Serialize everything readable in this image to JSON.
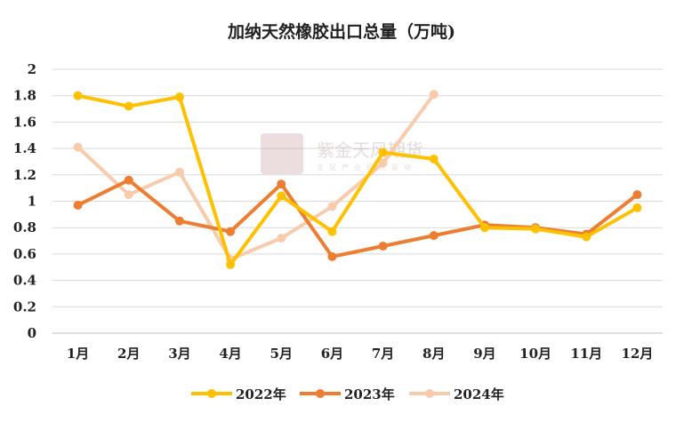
{
  "chart_data": {
    "type": "line",
    "title": "加纳天然橡胶出口总量（万吨)",
    "xlabel": "",
    "ylabel": "",
    "categories": [
      "1月",
      "2月",
      "3月",
      "4月",
      "5月",
      "6月",
      "7月",
      "8月",
      "9月",
      "10月",
      "11月",
      "12月"
    ],
    "ylim": [
      0,
      2
    ],
    "yticks": [
      "0",
      "0.2",
      "0.4",
      "0.6",
      "0.8",
      "1",
      "1.2",
      "1.4",
      "1.6",
      "1.8",
      "2"
    ],
    "grid": true,
    "legend_position": "bottom",
    "series": [
      {
        "name": "2022年",
        "color": "#FFC000",
        "values": [
          1.8,
          1.72,
          1.79,
          0.52,
          1.04,
          0.77,
          1.37,
          1.32,
          0.8,
          0.79,
          0.73,
          0.95
        ]
      },
      {
        "name": "2023年",
        "color": "#ED7D31",
        "values": [
          0.97,
          1.16,
          0.85,
          0.77,
          1.13,
          0.58,
          0.66,
          0.74,
          0.82,
          0.8,
          0.75,
          1.05
        ]
      },
      {
        "name": "2024年",
        "color": "#F8CBAD",
        "values": [
          1.41,
          1.05,
          1.22,
          0.56,
          0.72,
          0.96,
          1.29,
          1.81,
          null,
          null,
          null,
          null
        ]
      }
    ]
  },
  "watermark": {
    "logo_text": "紫金天风",
    "brand": "紫金天风期货",
    "slogan": "立足产业研究驱动"
  }
}
